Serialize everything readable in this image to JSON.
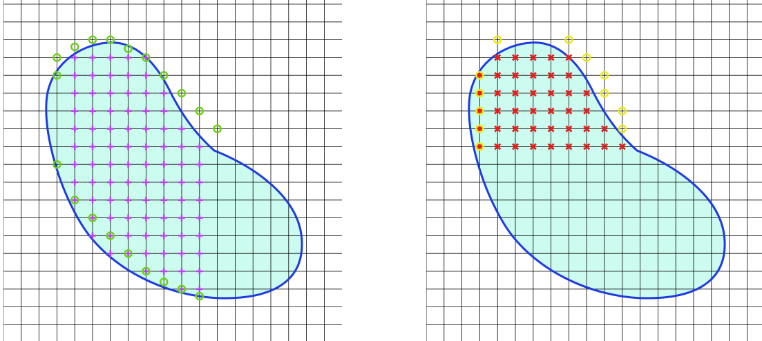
{
  "colors": {
    "background": "#ffffff",
    "grid_line": "#000000",
    "region_fill": "#ccfbef",
    "boundary": "#1f3be0",
    "interior_marker": "#bb44ee",
    "boundary_marker": "#6ecf1a",
    "cut_interior_marker": "#ee1c1c",
    "cut_boundary_marker": "#e8e81a"
  },
  "icons": {
    "interior": "plus-marker",
    "boundary": "circle-marker",
    "cut_interior": "cross-marker"
  },
  "grid": {
    "columns": 19,
    "rows": 19
  },
  "panels": [
    {
      "name": "full-region",
      "interior_node_grid_columns": [
        4,
        11
      ],
      "interior_node_grid_rows": [
        3,
        16
      ],
      "boundary_nodes": [
        [
          5,
          2
        ],
        [
          6,
          2
        ],
        [
          7,
          2.5
        ],
        [
          8,
          3
        ],
        [
          9,
          4
        ],
        [
          10,
          5
        ],
        [
          11,
          6
        ],
        [
          12,
          7
        ],
        [
          3,
          3
        ],
        [
          3,
          4
        ],
        [
          3,
          9
        ],
        [
          4,
          11
        ],
        [
          5,
          12
        ],
        [
          6,
          13
        ],
        [
          7,
          14
        ],
        [
          8,
          15
        ],
        [
          9,
          15.6
        ],
        [
          10,
          16
        ],
        [
          11,
          16.4
        ],
        [
          4,
          2.4
        ]
      ]
    },
    {
      "name": "cut-region",
      "interior_node_grid_columns": [
        3,
        11
      ],
      "interior_node_grid_rows": [
        3,
        8
      ],
      "boundary_nodes": [
        [
          4,
          2
        ],
        [
          8,
          2
        ],
        [
          9,
          3
        ],
        [
          3,
          4
        ],
        [
          10,
          4
        ],
        [
          3,
          5
        ],
        [
          10,
          5
        ],
        [
          3,
          6
        ],
        [
          11,
          6
        ],
        [
          3,
          7
        ],
        [
          11,
          7
        ],
        [
          3,
          8
        ]
      ]
    }
  ]
}
